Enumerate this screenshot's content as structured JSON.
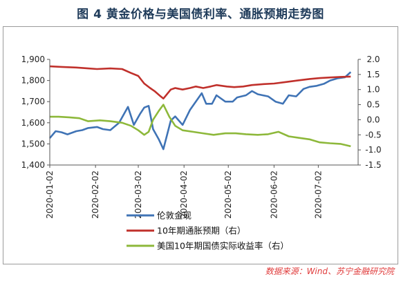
{
  "title": "图 4  黄金价格与美国债利率、通胀预期走势图",
  "source": "数据来源：Wind、苏宁金融研究院",
  "colors": {
    "gold": "#3f73b5",
    "inflation": "#c0302b",
    "real_yield": "#8db83a"
  },
  "chart_data": {
    "type": "line",
    "x_tick_labels": [
      "2020-01-02",
      "2020-02-02",
      "2020-03-02",
      "2020-04-02",
      "2020-05-02",
      "2020-06-02",
      "2020-07-02"
    ],
    "left_axis": {
      "ylim": [
        1400,
        1900
      ],
      "ticks": [
        "1,400",
        "1,500",
        "1,600",
        "1,700",
        "1,800",
        "1,900"
      ]
    },
    "right_axis": {
      "ylim": [
        -1.5,
        2.0
      ],
      "ticks": [
        "-1.5",
        "-1.0",
        "-0.5",
        "0.0",
        "0.5",
        "1.0",
        "1.5",
        "2.0"
      ]
    },
    "series": [
      {
        "name": "伦敦金现",
        "axis": "left",
        "color": "#3f73b5",
        "points": [
          [
            "2020-01-02",
            1527
          ],
          [
            "2020-01-06",
            1560
          ],
          [
            "2020-01-10",
            1555
          ],
          [
            "2020-01-14",
            1545
          ],
          [
            "2020-01-20",
            1560
          ],
          [
            "2020-01-24",
            1565
          ],
          [
            "2020-01-28",
            1575
          ],
          [
            "2020-02-03",
            1580
          ],
          [
            "2020-02-07",
            1570
          ],
          [
            "2020-02-12",
            1565
          ],
          [
            "2020-02-18",
            1600
          ],
          [
            "2020-02-24",
            1675
          ],
          [
            "2020-02-28",
            1590
          ],
          [
            "2020-03-03",
            1640
          ],
          [
            "2020-03-06",
            1672
          ],
          [
            "2020-03-09",
            1680
          ],
          [
            "2020-03-12",
            1570
          ],
          [
            "2020-03-16",
            1520
          ],
          [
            "2020-03-19",
            1475
          ],
          [
            "2020-03-24",
            1610
          ],
          [
            "2020-03-27",
            1630
          ],
          [
            "2020-04-01",
            1590
          ],
          [
            "2020-04-06",
            1660
          ],
          [
            "2020-04-09",
            1690
          ],
          [
            "2020-04-14",
            1740
          ],
          [
            "2020-04-17",
            1690
          ],
          [
            "2020-04-21",
            1690
          ],
          [
            "2020-04-24",
            1730
          ],
          [
            "2020-04-30",
            1700
          ],
          [
            "2020-05-05",
            1700
          ],
          [
            "2020-05-08",
            1720
          ],
          [
            "2020-05-14",
            1730
          ],
          [
            "2020-05-18",
            1750
          ],
          [
            "2020-05-22",
            1735
          ],
          [
            "2020-05-29",
            1725
          ],
          [
            "2020-06-03",
            1700
          ],
          [
            "2020-06-08",
            1690
          ],
          [
            "2020-06-12",
            1730
          ],
          [
            "2020-06-17",
            1725
          ],
          [
            "2020-06-22",
            1760
          ],
          [
            "2020-06-26",
            1770
          ],
          [
            "2020-07-01",
            1775
          ],
          [
            "2020-07-06",
            1785
          ],
          [
            "2020-07-10",
            1800
          ],
          [
            "2020-07-15",
            1810
          ],
          [
            "2020-07-20",
            1815
          ],
          [
            "2020-07-24",
            1840
          ]
        ]
      },
      {
        "name": "10年期通胀预期（右）",
        "axis": "right",
        "color": "#c0302b",
        "points": [
          [
            "2020-01-02",
            1.77
          ],
          [
            "2020-01-10",
            1.75
          ],
          [
            "2020-01-20",
            1.73
          ],
          [
            "2020-01-28",
            1.7
          ],
          [
            "2020-02-03",
            1.68
          ],
          [
            "2020-02-12",
            1.7
          ],
          [
            "2020-02-20",
            1.68
          ],
          [
            "2020-02-26",
            1.55
          ],
          [
            "2020-03-02",
            1.45
          ],
          [
            "2020-03-06",
            1.2
          ],
          [
            "2020-03-10",
            1.05
          ],
          [
            "2020-03-13",
            0.95
          ],
          [
            "2020-03-17",
            0.78
          ],
          [
            "2020-03-19",
            0.7
          ],
          [
            "2020-03-24",
            1.0
          ],
          [
            "2020-03-27",
            1.05
          ],
          [
            "2020-04-01",
            1.0
          ],
          [
            "2020-04-06",
            1.05
          ],
          [
            "2020-04-10",
            1.1
          ],
          [
            "2020-04-15",
            1.05
          ],
          [
            "2020-04-20",
            1.1
          ],
          [
            "2020-04-24",
            1.15
          ],
          [
            "2020-05-01",
            1.1
          ],
          [
            "2020-05-06",
            1.08
          ],
          [
            "2020-05-12",
            1.1
          ],
          [
            "2020-05-18",
            1.15
          ],
          [
            "2020-05-26",
            1.18
          ],
          [
            "2020-06-02",
            1.2
          ],
          [
            "2020-06-10",
            1.25
          ],
          [
            "2020-06-18",
            1.3
          ],
          [
            "2020-06-26",
            1.35
          ],
          [
            "2020-07-03",
            1.38
          ],
          [
            "2020-07-10",
            1.4
          ],
          [
            "2020-07-17",
            1.42
          ],
          [
            "2020-07-24",
            1.43
          ]
        ]
      },
      {
        "name": "美国10年期国债实际收益率（右）",
        "axis": "right",
        "color": "#8db83a",
        "points": [
          [
            "2020-01-02",
            0.1
          ],
          [
            "2020-01-08",
            0.1
          ],
          [
            "2020-01-15",
            0.08
          ],
          [
            "2020-01-22",
            0.05
          ],
          [
            "2020-01-28",
            -0.05
          ],
          [
            "2020-02-05",
            -0.02
          ],
          [
            "2020-02-12",
            -0.05
          ],
          [
            "2020-02-20",
            -0.1
          ],
          [
            "2020-02-26",
            -0.2
          ],
          [
            "2020-03-02",
            -0.35
          ],
          [
            "2020-03-06",
            -0.5
          ],
          [
            "2020-03-09",
            -0.4
          ],
          [
            "2020-03-12",
            0.0
          ],
          [
            "2020-03-16",
            0.3
          ],
          [
            "2020-03-19",
            0.5
          ],
          [
            "2020-03-23",
            0.1
          ],
          [
            "2020-03-27",
            -0.2
          ],
          [
            "2020-04-01",
            -0.35
          ],
          [
            "2020-04-08",
            -0.4
          ],
          [
            "2020-04-15",
            -0.45
          ],
          [
            "2020-04-22",
            -0.5
          ],
          [
            "2020-04-30",
            -0.45
          ],
          [
            "2020-05-07",
            -0.45
          ],
          [
            "2020-05-14",
            -0.48
          ],
          [
            "2020-05-22",
            -0.5
          ],
          [
            "2020-05-29",
            -0.48
          ],
          [
            "2020-06-05",
            -0.4
          ],
          [
            "2020-06-12",
            -0.55
          ],
          [
            "2020-06-19",
            -0.6
          ],
          [
            "2020-06-26",
            -0.65
          ],
          [
            "2020-07-03",
            -0.75
          ],
          [
            "2020-07-10",
            -0.78
          ],
          [
            "2020-07-17",
            -0.8
          ],
          [
            "2020-07-24",
            -0.88
          ]
        ]
      }
    ],
    "legend_position": "bottom-left",
    "grid": false
  }
}
